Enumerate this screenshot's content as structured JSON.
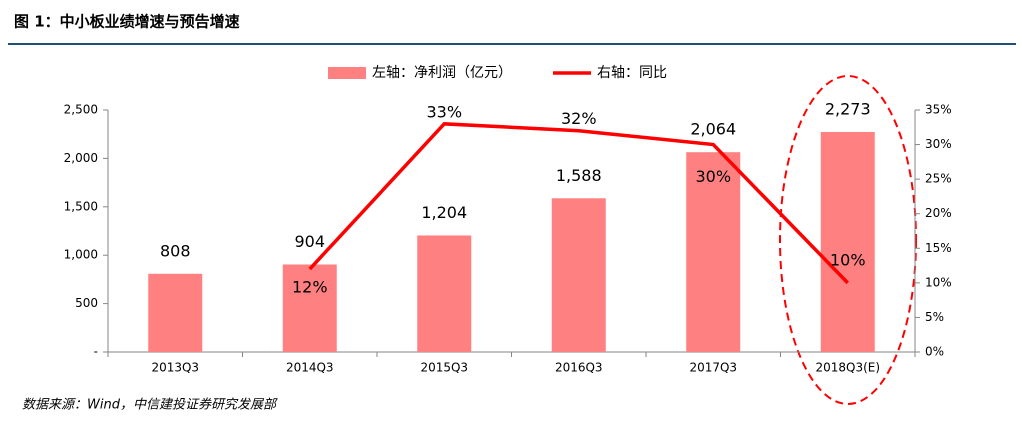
{
  "chart_data": {
    "type": "bar-line",
    "title": "图 1：中小板业绩增速与预告增速",
    "source": "数据来源：Wind，中信建投证券研究发展部",
    "categories": [
      "2013Q3",
      "2014Q3",
      "2015Q3",
      "2016Q3",
      "2017Q3",
      "2018Q3(E)"
    ],
    "series": [
      {
        "name": "左轴：净利润（亿元）",
        "type": "bar",
        "color": "#ff8080",
        "values": [
          808,
          904,
          1204,
          1588,
          2064,
          2273
        ],
        "value_labels": [
          "808",
          "904",
          "1,204",
          "1,588",
          "2,064",
          "2,273"
        ]
      },
      {
        "name": "右轴：同比",
        "type": "line",
        "axis": "y2",
        "color": "#ff0000",
        "values": [
          null,
          12,
          33,
          32,
          30,
          10
        ],
        "value_labels": [
          null,
          "12%",
          "33%",
          "32%",
          "30%",
          "10%"
        ]
      }
    ],
    "ylim": [
      0,
      2500
    ],
    "yticks": [
      {
        "value": 0,
        "label": "-"
      },
      500,
      {
        "value": 1000,
        "label": "1,000"
      },
      {
        "value": 1500,
        "label": "1,500"
      },
      {
        "value": 2000,
        "label": "2,000"
      },
      {
        "value": 2500,
        "label": "2,500"
      }
    ],
    "y2lim": [
      0,
      35
    ],
    "y2ticks": [
      {
        "value": 0,
        "label": "0%"
      },
      {
        "value": 5,
        "label": "5%"
      },
      {
        "value": 10,
        "label": "10%"
      },
      {
        "value": 15,
        "label": "15%"
      },
      {
        "value": 20,
        "label": "20%"
      },
      {
        "value": 25,
        "label": "25%"
      },
      {
        "value": 30,
        "label": "30%"
      },
      {
        "value": 35,
        "label": "35%"
      }
    ],
    "grid": false
  }
}
